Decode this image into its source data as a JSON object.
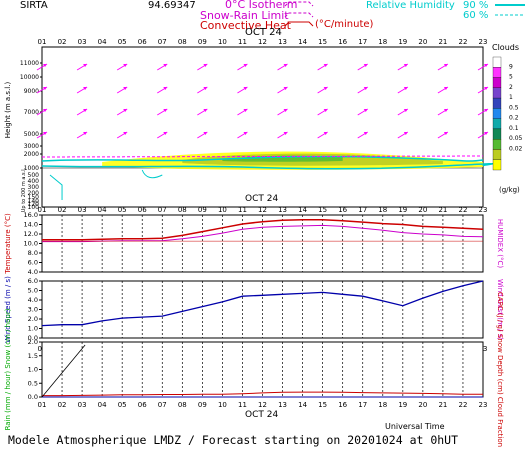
{
  "header": {
    "station": "SIRTA",
    "coords": "94.69347",
    "legend_iso": "0°C Isotherm",
    "legend_snow": "Snow-Rain Limit",
    "legend_conv": "Convective Heat",
    "legend_conv_units": "(°C/minute)",
    "legend_rh": "Relative Humidity",
    "rh_90": "90 %",
    "rh_60": "60 %"
  },
  "hours": [
    "01",
    "02",
    "03",
    "04",
    "05",
    "06",
    "07",
    "08",
    "09",
    "10",
    "11",
    "12",
    "13",
    "14",
    "15",
    "16",
    "17",
    "18",
    "19",
    "20",
    "21",
    "22",
    "23"
  ],
  "date_label": "OCT 24",
  "footer": {
    "universal_time": "Universal Time",
    "caption": "Modele Atmospherique LMDZ / Forecast starting on 20201024 at 0hUT"
  },
  "colors": {
    "isotherm": "#cc00cc",
    "rh": "#00cccc",
    "temperature": "#cc0000",
    "humidex": "#cc00cc",
    "wind": "#0000aa",
    "rain": "#00aa00",
    "capc": "#cc0000"
  },
  "chart_data": [
    {
      "type": "heatmap",
      "title": "Clouds",
      "ylabel": "Height (m a.s.l.)",
      "ylabel_lower": "Up to 200 m a.s.l.",
      "y_ticks": [
        "11000",
        "10000",
        "9000",
        "7000",
        "5000",
        "3000",
        "2000",
        "1000",
        "500",
        "400",
        "300",
        "200",
        "150",
        "140",
        "120",
        "100"
      ],
      "colorbar_title": "Clouds",
      "colorbar_units": "(g/kg)",
      "colorbar_ticks": [
        "9",
        "5",
        "2",
        "1",
        "0.5",
        "0.2",
        "0.1",
        "0.05",
        "0.02"
      ],
      "colorbar_colors": [
        "#ffffff",
        "#ff33ff",
        "#cc00cc",
        "#7744cc",
        "#3344bb",
        "#2288ee",
        "#11aaaa",
        "#118855",
        "#55bb33",
        "#bbcc22",
        "#ffff00"
      ]
    },
    {
      "type": "line",
      "ylabel": "Temperature (°C)",
      "ylabel_right": "HUMIDEX (°C)",
      "y_ticks": [
        4,
        6,
        8,
        10,
        12,
        14,
        16
      ],
      "ylim": [
        4,
        16
      ],
      "series": [
        {
          "name": "Temperature",
          "values": [
            10.8,
            10.8,
            10.8,
            10.9,
            11.0,
            11.0,
            11.1,
            11.7,
            12.5,
            13.3,
            14.1,
            14.6,
            14.9,
            15.0,
            15.0,
            14.8,
            14.5,
            14.2,
            14.0,
            13.6,
            13.4,
            13.2,
            13.0
          ]
        },
        {
          "name": "HUMIDEX",
          "values": [
            10.4,
            10.4,
            10.4,
            10.5,
            10.6,
            10.6,
            10.6,
            11.0,
            11.5,
            12.2,
            13.0,
            13.4,
            13.6,
            13.7,
            13.8,
            13.6,
            13.2,
            12.8,
            12.3,
            12.0,
            11.8,
            11.5,
            11.4
          ]
        }
      ]
    },
    {
      "type": "line",
      "ylabel": "Wind Speed (m / s)",
      "ylabel_right": "Wind Gust (m / s)",
      "y_ticks": [
        0.0,
        1.0,
        2.0,
        3.0,
        4.0,
        5.0,
        6.0
      ],
      "ylim": [
        0,
        6
      ],
      "series": [
        {
          "name": "Wind Speed",
          "values": [
            1.3,
            1.4,
            1.4,
            1.8,
            2.1,
            2.2,
            2.3,
            2.8,
            3.3,
            3.8,
            4.4,
            4.5,
            4.6,
            4.7,
            4.8,
            4.6,
            4.4,
            3.9,
            3.4,
            4.2,
            4.9,
            5.5,
            6.0
          ]
        }
      ]
    },
    {
      "type": "line",
      "ylabel": "Rain (mm / hour) Snow (cm / hour)",
      "ylabel_right": "CAPC (J / g) Snow Depth (cm) Cloud Fraction",
      "y_ticks": [
        0.0,
        0.5,
        1.0,
        1.5,
        2.0
      ],
      "ylim": [
        0,
        2
      ],
      "series": [
        {
          "name": "CAPC",
          "values": [
            0.05,
            0.05,
            0.06,
            0.07,
            0.08,
            0.08,
            0.09,
            0.09,
            0.1,
            0.1,
            0.12,
            0.15,
            0.17,
            0.18,
            0.18,
            0.17,
            0.16,
            0.15,
            0.14,
            0.13,
            0.12,
            0.1,
            0.1
          ]
        },
        {
          "name": "Rain",
          "values": [
            0,
            0,
            0,
            0,
            0,
            0,
            0,
            0,
            0,
            0,
            0,
            0,
            0,
            0,
            0,
            0,
            0,
            0,
            0,
            0,
            0,
            0,
            0
          ]
        }
      ]
    }
  ]
}
